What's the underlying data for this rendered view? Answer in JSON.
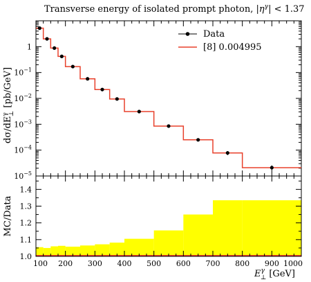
{
  "chart_data": [
    {
      "type": "line",
      "title": "Transverse energy of isolated prompt photon, |η^γ| < 1.37",
      "title_parts": {
        "prefix": "Transverse energy of isolated prompt photon, |",
        "eta": "η",
        "gamma": "γ",
        "suffix": "| < 1.37"
      },
      "xlabel": {
        "symbol": "E",
        "sup": "γ",
        "sub": "⊥",
        "unit": "[GeV]"
      },
      "ylabel": "dσ/dE⊥^γ [pb/GeV]",
      "ylabel_parts": {
        "a": "dσ/dE",
        "sup": "γ",
        "sub": "⊥",
        "b": " [pb/GeV]"
      },
      "log_y": true,
      "xlim": [
        100,
        1000
      ],
      "ylim": [
        1e-05,
        10
      ],
      "y_ticks": [
        {
          "v": 1e-05,
          "base": "10",
          "exp": "−5"
        },
        {
          "v": 0.0001,
          "base": "10",
          "exp": "−4"
        },
        {
          "v": 0.001,
          "base": "10",
          "exp": "−3"
        },
        {
          "v": 0.01,
          "base": "10",
          "exp": "−2"
        },
        {
          "v": 0.1,
          "base": "10",
          "exp": "−1"
        },
        {
          "v": 1,
          "base": "1",
          "exp": ""
        }
      ],
      "legend": {
        "position": "top-right",
        "entries": [
          "Data",
          "[8] 0.004995"
        ]
      },
      "series": [
        {
          "name": "Data",
          "style": "markers",
          "color": "#000000",
          "x": [
            112.5,
            137.5,
            162.5,
            187.5,
            225,
            275,
            325,
            375,
            450,
            550,
            650,
            750,
            900
          ],
          "y": [
            5.2,
            2.0,
            0.88,
            0.42,
            0.17,
            0.057,
            0.022,
            0.0095,
            0.0031,
            0.00085,
            0.00025,
            7.8e-05,
            2.1e-05
          ],
          "yerr_rel": [
            0,
            0,
            0,
            0,
            0,
            0,
            0,
            0,
            0,
            0,
            0,
            0.18,
            0.22
          ]
        },
        {
          "name": "[8] 0.004995",
          "style": "histogram",
          "color": "#e8402b",
          "bin_edges": [
            100,
            125,
            150,
            175,
            200,
            250,
            300,
            350,
            400,
            500,
            600,
            700,
            800,
            1000
          ],
          "values": [
            5.2,
            2.0,
            0.88,
            0.42,
            0.17,
            0.057,
            0.022,
            0.0095,
            0.0031,
            0.00085,
            0.00025,
            7.8e-05,
            2.1e-05
          ]
        }
      ]
    },
    {
      "type": "bar",
      "ylabel": "MC/Data",
      "xlim": [
        100,
        1000
      ],
      "ylim": [
        1.0,
        1.48
      ],
      "y_ticks": [
        "1.0",
        "1.1",
        "1.2",
        "1.3",
        "1.4"
      ],
      "x_ticks": [
        "100",
        "200",
        "300",
        "400",
        "500",
        "600",
        "700",
        "800",
        "900",
        "1000"
      ],
      "band_color": "#ffff00",
      "line_color": "#e8402b",
      "bin_edges": [
        100,
        125,
        150,
        175,
        200,
        250,
        300,
        350,
        400,
        500,
        600,
        700,
        800,
        1000
      ],
      "ratio": [
        1.0,
        1.0,
        1.0,
        1.0,
        1.0,
        1.0,
        1.0,
        1.0,
        1.0,
        1.0,
        1.0,
        1.0,
        1.0
      ],
      "band_upper": [
        1.055,
        1.05,
        1.06,
        1.063,
        1.058,
        1.065,
        1.072,
        1.082,
        1.105,
        1.155,
        1.25,
        1.335,
        1.335
      ]
    }
  ]
}
